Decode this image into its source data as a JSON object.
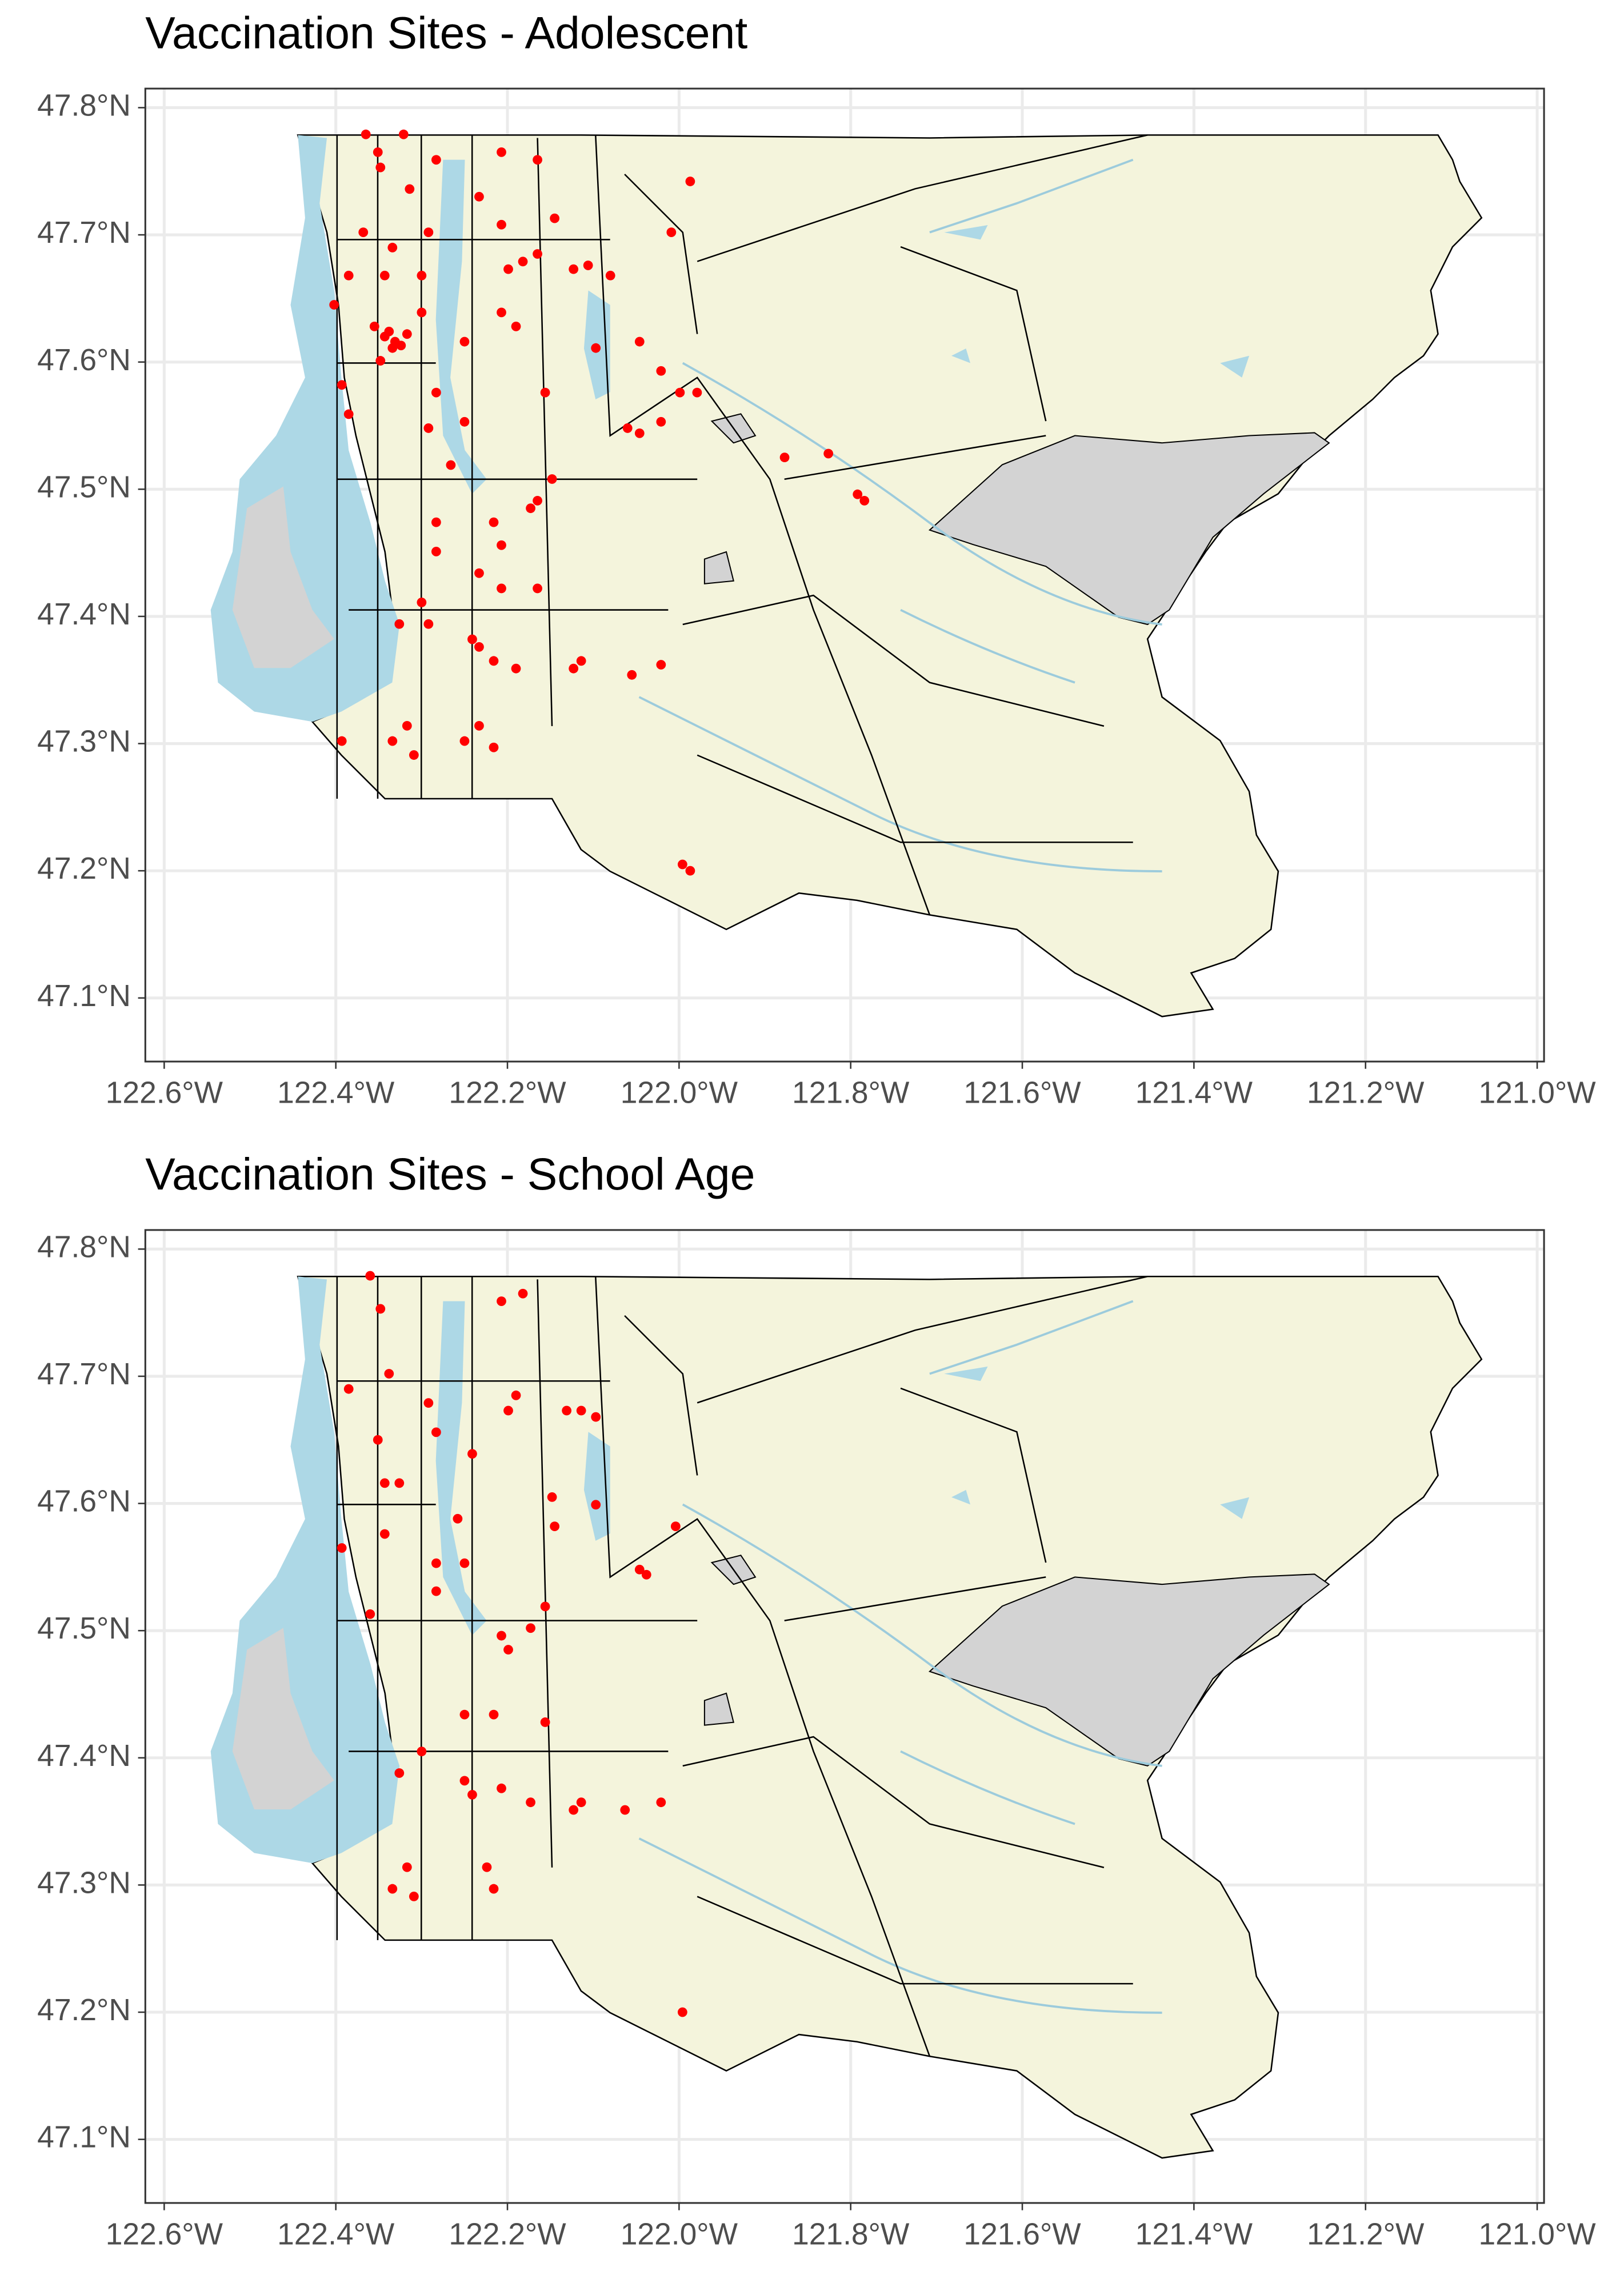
{
  "chart_data": [
    {
      "type": "scatter",
      "title": "Vaccination Sites - Adolescent",
      "color": "#ff0000",
      "grid": true,
      "xlim": [
        -122.622,
        -120.992
      ],
      "ylim": [
        47.05,
        47.815
      ],
      "xticks": [
        {
          "value": -122.6,
          "label": "122.6°W"
        },
        {
          "value": -122.4,
          "label": "122.4°W"
        },
        {
          "value": -122.2,
          "label": "122.2°W"
        },
        {
          "value": -122.0,
          "label": "122.0°W"
        },
        {
          "value": -121.8,
          "label": "121.8°W"
        },
        {
          "value": -121.6,
          "label": "121.6°W"
        },
        {
          "value": -121.4,
          "label": "121.4°W"
        },
        {
          "value": -121.2,
          "label": "121.2°W"
        },
        {
          "value": -121.0,
          "label": "121.0°W"
        }
      ],
      "yticks": [
        {
          "value": 47.1,
          "label": "47.1°N"
        },
        {
          "value": 47.2,
          "label": "47.2°N"
        },
        {
          "value": 47.3,
          "label": "47.3°N"
        },
        {
          "value": 47.4,
          "label": "47.4°N"
        },
        {
          "value": 47.5,
          "label": "47.5°N"
        },
        {
          "value": 47.6,
          "label": "47.6°N"
        },
        {
          "value": 47.7,
          "label": "47.7°N"
        },
        {
          "value": 47.8,
          "label": "47.8°N"
        }
      ],
      "x": [
        -122.365,
        -122.351,
        -122.321,
        -122.348,
        -122.314,
        -122.283,
        -122.292,
        -122.334,
        -122.368,
        -122.385,
        -122.343,
        -122.3,
        -122.402,
        -122.355,
        -122.343,
        -122.334,
        -122.348,
        -122.317,
        -122.3,
        -122.25,
        -122.207,
        -122.19,
        -122.199,
        -122.182,
        -122.165,
        -122.123,
        -122.106,
        -122.145,
        -122.207,
        -122.165,
        -122.233,
        -122.207,
        -122.097,
        -122.046,
        -122.021,
        -122.06,
        -122.046,
        -122.021,
        -121.999,
        -121.979,
        -122.393,
        -122.385,
        -122.283,
        -122.292,
        -122.266,
        -122.25,
        -122.216,
        -122.207,
        -122.173,
        -122.165,
        -122.148,
        -122.283,
        -122.3,
        -122.292,
        -122.326,
        -122.241,
        -122.233,
        -122.216,
        -122.19,
        -122.123,
        -122.114,
        -122.055,
        -122.021,
        -122.165,
        -122.317,
        -122.334,
        -122.309,
        -122.25,
        -122.233,
        -122.216,
        -122.156,
        -122.233,
        -122.207,
        -122.08,
        -122.009,
        -121.987,
        -121.877,
        -121.826,
        -121.784,
        -121.792,
        -121.996,
        -121.987,
        -122.283,
        -122.393,
        -122.338,
        -122.331,
        -122.324
      ],
      "values": [
        47.779,
        47.765,
        47.779,
        47.753,
        47.736,
        47.759,
        47.702,
        47.69,
        47.702,
        47.668,
        47.668,
        47.668,
        47.645,
        47.628,
        47.62,
        47.611,
        47.601,
        47.622,
        47.639,
        47.616,
        47.639,
        47.628,
        47.673,
        47.679,
        47.685,
        47.673,
        47.676,
        47.713,
        47.765,
        47.759,
        47.73,
        47.708,
        47.611,
        47.616,
        47.593,
        47.548,
        47.544,
        47.553,
        47.576,
        47.576,
        47.582,
        47.559,
        47.576,
        47.548,
        47.519,
        47.553,
        47.474,
        47.456,
        47.485,
        47.491,
        47.508,
        47.451,
        47.411,
        47.394,
        47.394,
        47.382,
        47.376,
        47.365,
        47.359,
        47.359,
        47.365,
        47.354,
        47.362,
        47.422,
        47.314,
        47.302,
        47.291,
        47.302,
        47.314,
        47.297,
        47.576,
        47.434,
        47.422,
        47.668,
        47.702,
        47.742,
        47.525,
        47.528,
        47.491,
        47.496,
        47.205,
        47.2,
        47.474,
        47.302,
        47.624,
        47.616,
        47.613
      ]
    },
    {
      "type": "scatter",
      "title": "Vaccination Sites - School Age",
      "color": "#ff0000",
      "grid": true,
      "xlim": [
        -122.622,
        -120.992
      ],
      "ylim": [
        47.05,
        47.815
      ],
      "xticks": [
        {
          "value": -122.6,
          "label": "122.6°W"
        },
        {
          "value": -122.4,
          "label": "122.4°W"
        },
        {
          "value": -122.2,
          "label": "122.2°W"
        },
        {
          "value": -122.0,
          "label": "122.0°W"
        },
        {
          "value": -121.8,
          "label": "121.8°W"
        },
        {
          "value": -121.6,
          "label": "121.6°W"
        },
        {
          "value": -121.4,
          "label": "121.4°W"
        },
        {
          "value": -121.2,
          "label": "121.2°W"
        },
        {
          "value": -121.0,
          "label": "121.0°W"
        }
      ],
      "yticks": [
        {
          "value": 47.1,
          "label": "47.1°N"
        },
        {
          "value": 47.2,
          "label": "47.2°N"
        },
        {
          "value": 47.3,
          "label": "47.3°N"
        },
        {
          "value": 47.4,
          "label": "47.4°N"
        },
        {
          "value": 47.5,
          "label": "47.5°N"
        },
        {
          "value": 47.6,
          "label": "47.6°N"
        },
        {
          "value": 47.7,
          "label": "47.7°N"
        },
        {
          "value": 47.8,
          "label": "47.8°N"
        }
      ],
      "x": [
        -122.36,
        -122.348,
        -122.338,
        -122.385,
        -122.351,
        -122.343,
        -122.326,
        -122.283,
        -122.292,
        -122.241,
        -122.199,
        -122.19,
        -122.131,
        -122.114,
        -122.097,
        -122.207,
        -122.182,
        -122.148,
        -122.145,
        -122.097,
        -122.046,
        -122.038,
        -122.004,
        -122.393,
        -122.283,
        -122.283,
        -122.36,
        -122.25,
        -122.207,
        -122.199,
        -122.173,
        -122.156,
        -122.25,
        -122.216,
        -122.156,
        -122.3,
        -122.326,
        -122.25,
        -122.241,
        -122.207,
        -122.173,
        -122.123,
        -122.114,
        -122.063,
        -122.021,
        -122.317,
        -122.334,
        -122.309,
        -122.224,
        -122.216,
        -121.996,
        -122.258,
        -122.343
      ],
      "values": [
        47.779,
        47.753,
        47.702,
        47.69,
        47.65,
        47.616,
        47.616,
        47.656,
        47.679,
        47.639,
        47.673,
        47.685,
        47.673,
        47.673,
        47.668,
        47.759,
        47.765,
        47.605,
        47.582,
        47.599,
        47.548,
        47.544,
        47.582,
        47.565,
        47.553,
        47.531,
        47.513,
        47.553,
        47.496,
        47.485,
        47.502,
        47.519,
        47.434,
        47.434,
        47.428,
        47.405,
        47.388,
        47.382,
        47.371,
        47.376,
        47.365,
        47.359,
        47.365,
        47.359,
        47.365,
        47.314,
        47.297,
        47.291,
        47.314,
        47.297,
        47.2,
        47.588,
        47.576
      ]
    }
  ]
}
